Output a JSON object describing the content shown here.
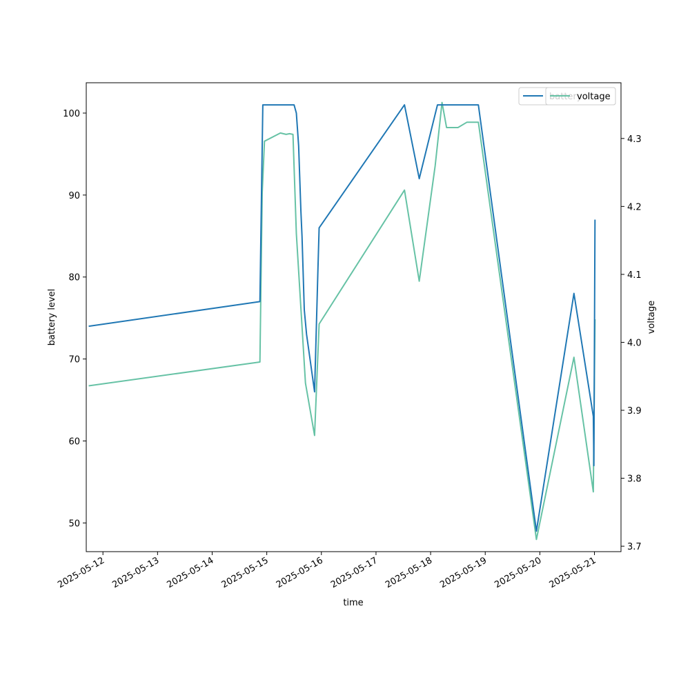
{
  "chart_data": {
    "type": "line",
    "xlabel": "time",
    "ylabel": "battery level",
    "ylabel_right": "voltage",
    "x_ticks": [
      "2025-05-12",
      "2025-05-13",
      "2025-05-14",
      "2025-05-15",
      "2025-05-16",
      "2025-05-17",
      "2025-05-18",
      "2025-05-19",
      "2025-05-20",
      "2025-05-21"
    ],
    "y_ticks": [
      50,
      60,
      70,
      80,
      90,
      100
    ],
    "y_ticks_right": [
      3.7,
      3.8,
      3.9,
      4.0,
      4.1,
      4.2,
      4.3
    ],
    "xlim": [
      "2025-05-11 16:40",
      "2025-05-21 11:40"
    ],
    "ylim": [
      46.5,
      103.7
    ],
    "ylim_right": [
      3.692,
      4.382
    ],
    "grid": false,
    "legend_placement": "top-right",
    "series": [
      {
        "name": "battery",
        "axis": "left",
        "color": "#1f77b4",
        "points": [
          [
            "2025-05-11 17:45",
            74
          ],
          [
            "2025-05-14 21:00",
            77
          ],
          [
            "2025-05-14 22:15",
            101
          ],
          [
            "2025-05-15 12:00",
            101
          ],
          [
            "2025-05-15 13:00",
            100
          ],
          [
            "2025-05-15 14:00",
            96
          ],
          [
            "2025-05-15 15:00",
            88
          ],
          [
            "2025-05-15 15:30",
            85
          ],
          [
            "2025-05-15 16:30",
            76
          ],
          [
            "2025-05-15 17:30",
            73
          ],
          [
            "2025-05-15 19:00",
            70
          ],
          [
            "2025-05-15 21:00",
            66
          ],
          [
            "2025-05-15 22:30",
            81
          ],
          [
            "2025-05-15 23:00",
            86
          ],
          [
            "2025-05-17 12:30",
            101
          ],
          [
            "2025-05-17 19:00",
            92
          ],
          [
            "2025-05-18 03:00",
            101
          ],
          [
            "2025-05-18 12:00",
            101
          ],
          [
            "2025-05-18 21:00",
            101
          ],
          [
            "2025-05-19 22:30",
            49
          ],
          [
            "2025-05-20 15:00",
            78
          ],
          [
            "2025-05-20 23:30",
            63
          ],
          [
            "2025-05-20 23:45",
            57
          ],
          [
            "2025-05-21 00:15",
            87
          ]
        ]
      },
      {
        "name": "voltage",
        "axis": "right",
        "color": "#66c2a5",
        "points": [
          [
            "2025-05-11 17:45",
            3.936
          ],
          [
            "2025-05-14 21:00",
            3.971
          ],
          [
            "2025-05-14 22:00",
            4.22
          ],
          [
            "2025-05-14 23:00",
            4.296
          ],
          [
            "2025-05-15 06:00",
            4.308
          ],
          [
            "2025-05-15 08:30",
            4.306
          ],
          [
            "2025-05-15 10:00",
            4.307
          ],
          [
            "2025-05-15 11:30",
            4.306
          ],
          [
            "2025-05-15 13:00",
            4.16
          ],
          [
            "2025-05-15 15:00",
            4.05
          ],
          [
            "2025-05-15 17:00",
            3.94
          ],
          [
            "2025-05-15 21:00",
            3.863
          ],
          [
            "2025-05-15 23:00",
            4.027
          ],
          [
            "2025-05-17 12:30",
            4.224
          ],
          [
            "2025-05-17 19:00",
            4.09
          ],
          [
            "2025-05-18 02:00",
            4.26
          ],
          [
            "2025-05-18 05:00",
            4.353
          ],
          [
            "2025-05-18 07:00",
            4.316
          ],
          [
            "2025-05-18 12:00",
            4.316
          ],
          [
            "2025-05-18 16:00",
            4.324
          ],
          [
            "2025-05-18 21:00",
            4.324
          ],
          [
            "2025-05-19 22:30",
            3.71
          ],
          [
            "2025-05-20 15:00",
            3.978
          ],
          [
            "2025-05-20 23:30",
            3.78
          ],
          [
            "2025-05-20 23:45",
            3.87
          ],
          [
            "2025-05-21 00:15",
            4.034
          ]
        ]
      }
    ]
  }
}
